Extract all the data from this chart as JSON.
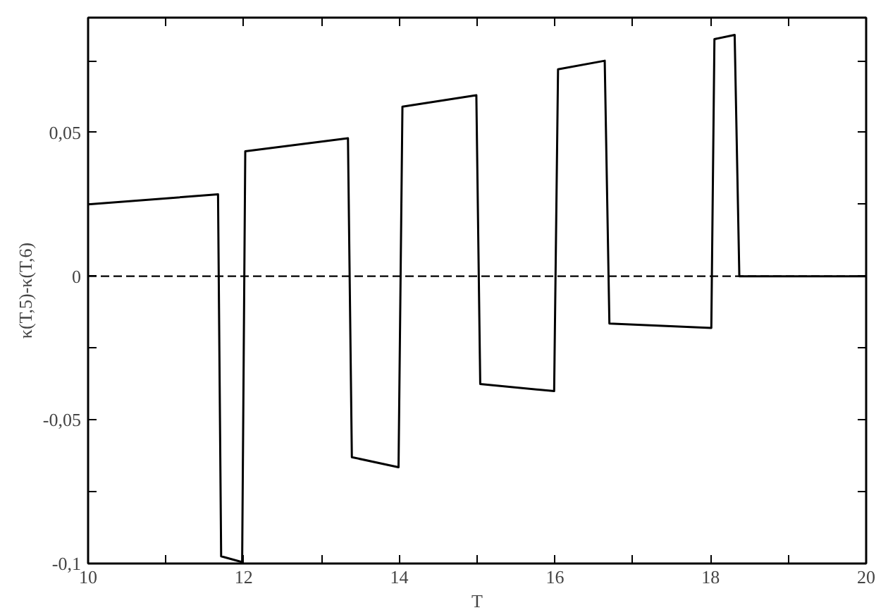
{
  "chart_data": {
    "type": "line",
    "xlabel": "T",
    "ylabel": "κ(T,5)-κ(T,6)",
    "x": [
      10,
      11.67,
      11.71,
      11.98,
      12.02,
      13.34,
      13.39,
      13.99,
      14.04,
      14.99,
      15.04,
      15.99,
      16.04,
      16.64,
      16.7,
      18.01,
      18.05,
      18.31,
      18.37,
      20
    ],
    "series": [
      {
        "color": "#000000",
        "values": [
          0.025,
          0.0285,
          -0.0975,
          -0.0995,
          0.0435,
          0.048,
          -0.063,
          -0.0665,
          0.059,
          0.063,
          -0.0375,
          -0.04,
          0.072,
          0.075,
          -0.0165,
          -0.018,
          0.0825,
          0.084,
          0,
          0
        ]
      }
    ],
    "xlim": [
      10,
      20
    ],
    "ylim": [
      -0.1,
      0.09
    ],
    "xticks": [
      10,
      {
        "value": 11,
        "label": null
      },
      12,
      {
        "value": 13,
        "label": null
      },
      14,
      {
        "value": 15,
        "label": null
      },
      16,
      {
        "value": 17,
        "label": null
      },
      18,
      {
        "value": 19,
        "label": null
      },
      20
    ],
    "yticks": [
      {
        "value": -0.1,
        "label": "-0,1"
      },
      {
        "value": -0.075,
        "label": null
      },
      {
        "value": -0.05,
        "label": "-0,05"
      },
      {
        "value": -0.025,
        "label": null
      },
      0,
      {
        "value": 0.025,
        "label": null
      },
      {
        "value": 0.05,
        "label": "0,05"
      },
      {
        "value": 0.075,
        "label": null
      }
    ],
    "ref_lines": [
      {
        "axis": "y",
        "value": 0,
        "label": null,
        "color": "#000000",
        "line_style": "dashed"
      }
    ],
    "grid": false,
    "marker": "none",
    "line_style": "solid"
  }
}
